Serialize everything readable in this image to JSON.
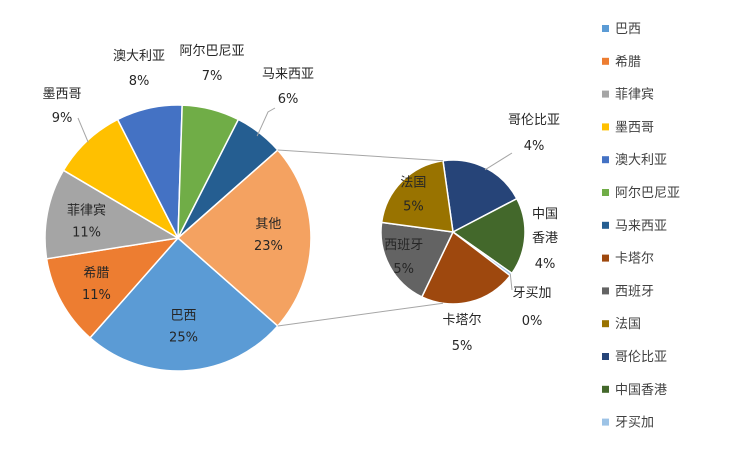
{
  "chart_data": {
    "type": "pie",
    "subtype": "pie-of-pie",
    "title": "",
    "main_pie": {
      "slices": [
        {
          "label": "巴西",
          "percent_label": "25%",
          "value": 25,
          "color": "#5B9BD5"
        },
        {
          "label": "希腊",
          "percent_label": "11%",
          "value": 11,
          "color": "#ED7D31"
        },
        {
          "label": "菲律宾",
          "percent_label": "11%",
          "value": 11,
          "color": "#A5A5A5"
        },
        {
          "label": "墨西哥",
          "percent_label": "9%",
          "value": 9,
          "color": "#FFC000"
        },
        {
          "label": "澳大利亚",
          "percent_label": "8%",
          "value": 8,
          "color": "#4472C4"
        },
        {
          "label": "阿尔巴尼亚",
          "percent_label": "7%",
          "value": 7,
          "color": "#70AD47"
        },
        {
          "label": "马来西亚",
          "percent_label": "6%",
          "value": 6,
          "color": "#255E91"
        },
        {
          "label": "其他",
          "percent_label": "23%",
          "value": 23,
          "color": "#F4A261"
        }
      ]
    },
    "secondary_pie": {
      "slices": [
        {
          "label": "哥伦比亚",
          "percent_label": "4%",
          "value": 4.5,
          "color": "#264478"
        },
        {
          "label": "中国香港",
          "percent_label": "4%",
          "value": 4.0,
          "color": "#43682B"
        },
        {
          "label": "牙买加",
          "percent_label": "0%",
          "value": 0.15,
          "color": "#9DC3E6"
        },
        {
          "label": "卡塔尔",
          "percent_label": "5%",
          "value": 5.0,
          "color": "#9E480E"
        },
        {
          "label": "西班牙",
          "percent_label": "5%",
          "value": 4.6,
          "color": "#636363"
        },
        {
          "label": "法国",
          "percent_label": "5%",
          "value": 4.75,
          "color": "#997300"
        }
      ]
    },
    "legend": {
      "position": "right",
      "items": [
        {
          "label": "巴西",
          "color": "#5B9BD5"
        },
        {
          "label": "希腊",
          "color": "#ED7D31"
        },
        {
          "label": "菲律宾",
          "color": "#A5A5A5"
        },
        {
          "label": "墨西哥",
          "color": "#FFC000"
        },
        {
          "label": "澳大利亚",
          "color": "#4472C4"
        },
        {
          "label": "阿尔巴尼亚",
          "color": "#70AD47"
        },
        {
          "label": "马来西亚",
          "color": "#255E91"
        },
        {
          "label": "卡塔尔",
          "color": "#9E480E"
        },
        {
          "label": "西班牙",
          "color": "#636363"
        },
        {
          "label": "法国",
          "color": "#997300"
        },
        {
          "label": "哥伦比亚",
          "color": "#264478"
        },
        {
          "label": "中国香港",
          "color": "#43682B"
        },
        {
          "label": "牙买加",
          "color": "#9DC3E6"
        }
      ]
    }
  }
}
